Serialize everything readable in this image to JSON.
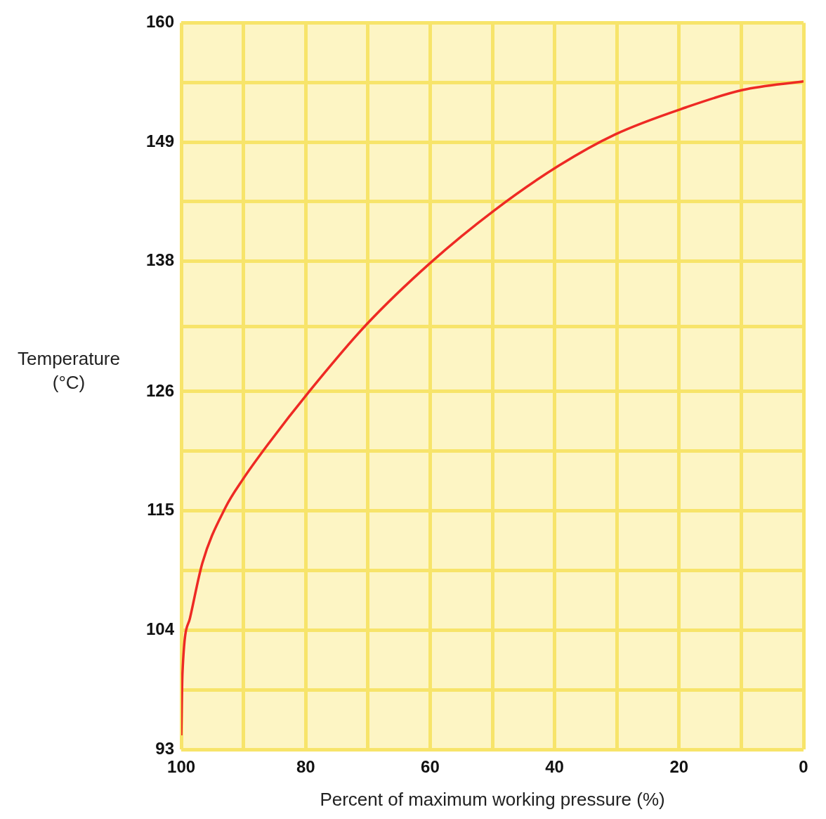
{
  "chart_data": {
    "type": "line",
    "xlabel": "Percent of maximum working pressure (%)",
    "ylabel": "Temperature (°C)",
    "xlim": [
      100,
      0
    ],
    "ylim": [
      93,
      160
    ],
    "xticks": [
      100,
      {
        "value": 90,
        "label": null
      },
      80,
      {
        "value": 70,
        "label": null
      },
      60,
      {
        "value": 50,
        "label": null
      },
      40,
      {
        "value": 30,
        "label": null
      },
      20,
      {
        "value": 10,
        "label": null
      },
      0
    ],
    "yticks": [
      93,
      {
        "value": 98.5,
        "label": null
      },
      104,
      {
        "value": 109.5,
        "label": null
      },
      115,
      {
        "value": 120.5,
        "label": null
      },
      126,
      {
        "value": 132,
        "label": null
      },
      138,
      {
        "value": 143.5,
        "label": null
      },
      149,
      {
        "value": 154.5,
        "label": null
      },
      160
    ],
    "grid": true,
    "legend": false,
    "marker": "none",
    "line_style": "solid",
    "series": [
      {
        "color": "#ee2a24",
        "x": [
          100,
          99.8,
          98.6,
          96.6,
          92.9,
          90.1,
          86.1,
          79.3,
          70.2,
          59.9,
          49.7,
          39.4,
          30.3,
          18.9,
          9.8,
          0
        ],
        "values": [
          94.3,
          100.1,
          105.1,
          110.2,
          115.3,
          117.9,
          121.1,
          126.1,
          132.2,
          137.9,
          142.7,
          146.8,
          149.7,
          152.2,
          153.8,
          154.6
        ]
      }
    ]
  }
}
